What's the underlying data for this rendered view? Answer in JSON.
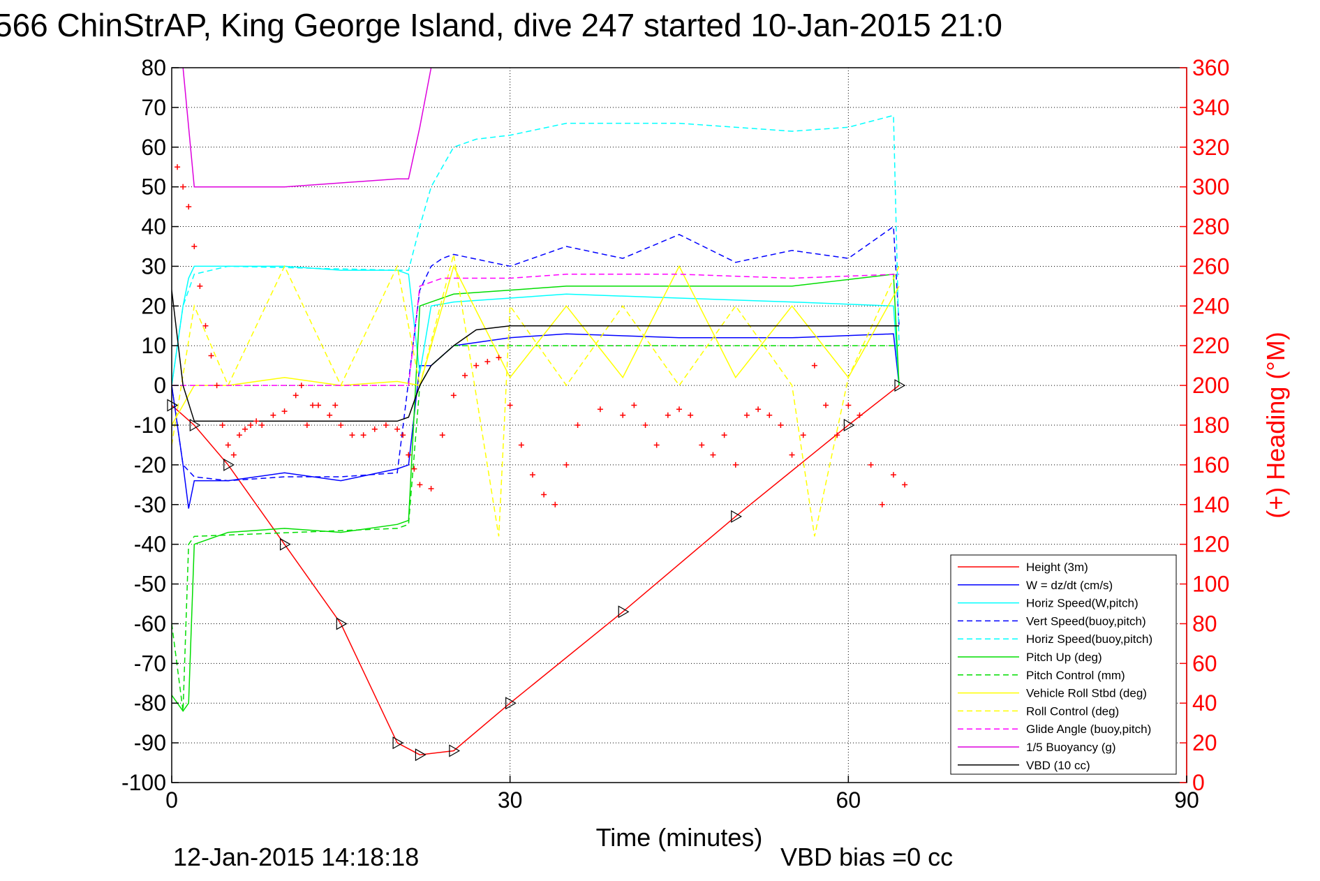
{
  "chart_data": {
    "type": "line",
    "title": "566 ChinStrAP, King George Island, dive 247 started 10-Jan-2015 21:0",
    "xlabel": "Time (minutes)",
    "ylabel_right": "(+) Heading (°M)",
    "xlim": [
      0,
      90
    ],
    "ylim": [
      -100,
      80
    ],
    "ylim_right": [
      0,
      360
    ],
    "xticks": [
      0,
      30,
      60,
      90
    ],
    "yticks": [
      80,
      70,
      60,
      50,
      40,
      30,
      20,
      10,
      0,
      -10,
      -20,
      -30,
      -40,
      -50,
      -60,
      -70,
      -80,
      -90,
      -100
    ],
    "yticks_right": [
      360,
      340,
      320,
      300,
      280,
      260,
      240,
      220,
      200,
      180,
      160,
      140,
      120,
      100,
      80,
      60,
      40,
      20,
      0
    ],
    "grid": true,
    "legend_position": "bottom-right",
    "footer_left": "12-Jan-2015 14:18:18",
    "footer_right": "VBD bias =0 cc",
    "series": [
      {
        "name": "Height (3m)",
        "color": "#ff0000",
        "style": "solid",
        "marker": "triangle",
        "x": [
          0,
          2,
          5,
          10,
          15,
          20,
          22,
          25,
          30,
          40,
          50,
          60,
          64.5
        ],
        "y": [
          -5,
          -10,
          -20,
          -40,
          -60,
          -90,
          -93,
          -92,
          -80,
          -57,
          -33,
          -10,
          0
        ]
      },
      {
        "name": "W = dz/dt (cm/s)",
        "color": "#0000ff",
        "style": "solid",
        "x": [
          0,
          1,
          1.5,
          2,
          5,
          10,
          15,
          20,
          21,
          22,
          23,
          25,
          30,
          35,
          45,
          55,
          64,
          64.5
        ],
        "y": [
          0,
          -20,
          -31,
          -24,
          -24,
          -22,
          -24,
          -21,
          -20,
          5,
          5,
          10,
          12,
          13,
          12,
          12,
          13,
          0
        ]
      },
      {
        "name": "Horiz Speed(W,pitch)",
        "color": "#00ffff",
        "style": "solid",
        "x": [
          0,
          1,
          1.5,
          2,
          5,
          10,
          15,
          20,
          21,
          22,
          23,
          25,
          30,
          35,
          45,
          55,
          64,
          64.5
        ],
        "y": [
          0,
          20,
          27,
          30,
          30,
          30,
          29,
          29,
          28,
          3,
          20,
          21,
          22,
          23,
          22,
          21,
          20,
          0
        ]
      },
      {
        "name": "Vert Speed(buoy,pitch)",
        "color": "#0000ff",
        "style": "dashed",
        "x": [
          0,
          1,
          2,
          5,
          10,
          15,
          20,
          22,
          23,
          24,
          25,
          30,
          35,
          40,
          45,
          50,
          55,
          60,
          64,
          64.5
        ],
        "y": [
          0,
          -20,
          -23,
          -24,
          -23,
          -23,
          -22,
          24,
          30,
          32,
          33,
          30,
          35,
          32,
          38,
          31,
          34,
          32,
          40,
          15
        ]
      },
      {
        "name": "Horiz Speed(buoy,pitch)",
        "color": "#00ffff",
        "style": "dashed",
        "x": [
          0,
          1,
          2,
          5,
          20,
          21,
          22,
          23,
          24,
          25,
          27,
          30,
          35,
          45,
          55,
          60,
          64,
          64.5
        ],
        "y": [
          0,
          20,
          28,
          30,
          29,
          29,
          40,
          50,
          55,
          60,
          62,
          63,
          66,
          66,
          64,
          65,
          68,
          10
        ]
      },
      {
        "name": "Pitch Up (deg)",
        "color": "#00dd00",
        "style": "solid",
        "x": [
          0,
          1,
          1.5,
          2,
          5,
          10,
          15,
          20,
          21,
          22,
          23,
          25,
          30,
          35,
          45,
          55,
          64,
          64.5
        ],
        "y": [
          -78,
          -82,
          -80,
          -40,
          -37,
          -36,
          -37,
          -35,
          -34,
          20,
          21,
          23,
          24,
          25,
          25,
          25,
          28,
          0
        ]
      },
      {
        "name": "Pitch Control (mm)",
        "color": "#00dd00",
        "style": "dashed",
        "x": [
          0,
          1,
          1.5,
          2,
          20,
          21,
          22,
          23,
          25,
          30,
          64.5
        ],
        "y": [
          -60,
          -82,
          -40,
          -38,
          -36,
          -35,
          0,
          5,
          10,
          10,
          10
        ]
      },
      {
        "name": "Vehicle Roll Stbd (deg)",
        "color": "#ffff00",
        "style": "solid",
        "x": [
          0,
          2,
          5,
          10,
          15,
          20,
          22,
          25,
          30,
          35,
          40,
          45,
          50,
          55,
          60,
          64.5
        ],
        "y": [
          -10,
          0,
          0,
          2,
          0,
          1,
          0,
          30,
          2,
          20,
          2,
          30,
          2,
          20,
          2,
          25
        ]
      },
      {
        "name": "Roll Control (deg)",
        "color": "#ffff00",
        "style": "dashed",
        "x": [
          0,
          2,
          5,
          10,
          15,
          20,
          22,
          25,
          29,
          30,
          35,
          40,
          45,
          50,
          55,
          57,
          60,
          64.5
        ],
        "y": [
          -15,
          20,
          0,
          30,
          0,
          30,
          0,
          33,
          -38,
          20,
          0,
          20,
          0,
          20,
          0,
          -38,
          2,
          30
        ]
      },
      {
        "name": "Glide Angle (buoy,pitch)",
        "color": "#ff00ff",
        "style": "dashed",
        "x": [
          0,
          20,
          21,
          22,
          24,
          30,
          35,
          45,
          55,
          64.5
        ],
        "y": [
          0,
          0,
          0,
          25,
          27,
          27,
          28,
          28,
          27,
          28
        ]
      },
      {
        "name": "1/5 Buoyancy (g)",
        "color": "#dd00dd",
        "style": "solid",
        "x": [
          0,
          1,
          2,
          5,
          10,
          15,
          20,
          21,
          22,
          23
        ],
        "y": [
          95,
          80,
          50,
          50,
          50,
          51,
          52,
          52,
          65,
          80
        ]
      },
      {
        "name": "VBD (10 cc)",
        "color": "#000000",
        "style": "solid",
        "x": [
          0,
          1,
          2,
          5,
          10,
          15,
          20,
          21,
          22,
          23,
          25,
          27,
          30,
          40,
          50,
          60,
          64.5
        ],
        "y": [
          24,
          0,
          -9,
          -9,
          -9,
          -9,
          -9,
          -8,
          0,
          5,
          10,
          14,
          15,
          15,
          15,
          15,
          15
        ]
      }
    ],
    "heading_series": {
      "name": "Heading",
      "color": "#ff0000",
      "marker": "plus",
      "axis": "right",
      "x": [
        0.5,
        1,
        1.5,
        2,
        2.5,
        3,
        3.5,
        4,
        4.5,
        5,
        5.5,
        6,
        6.5,
        7,
        7.5,
        8,
        9,
        10,
        11,
        11.5,
        12,
        12.5,
        13,
        14,
        14.5,
        15,
        16,
        17,
        18,
        19,
        20,
        20.5,
        21,
        21.5,
        22,
        23,
        24,
        25,
        26,
        27,
        28,
        29,
        30,
        31,
        32,
        33,
        34,
        35,
        36,
        38,
        40,
        41,
        42,
        43,
        44,
        45,
        46,
        47,
        48,
        49,
        50,
        51,
        52,
        53,
        54,
        55,
        56,
        57,
        58,
        59,
        60,
        61,
        62,
        63,
        64,
        65
      ],
      "y": [
        310,
        300,
        290,
        270,
        250,
        230,
        215,
        200,
        180,
        170,
        165,
        175,
        178,
        180,
        182,
        180,
        185,
        187,
        195,
        200,
        180,
        190,
        190,
        185,
        190,
        180,
        175,
        175,
        178,
        180,
        178,
        175,
        165,
        158,
        150,
        148,
        175,
        195,
        205,
        210,
        212,
        214,
        190,
        170,
        155,
        145,
        140,
        160,
        180,
        188,
        185,
        190,
        180,
        170,
        185,
        188,
        185,
        170,
        165,
        175,
        160,
        185,
        188,
        185,
        180,
        165,
        175,
        210,
        190,
        175,
        190,
        185,
        160,
        140,
        155,
        150
      ]
    }
  }
}
